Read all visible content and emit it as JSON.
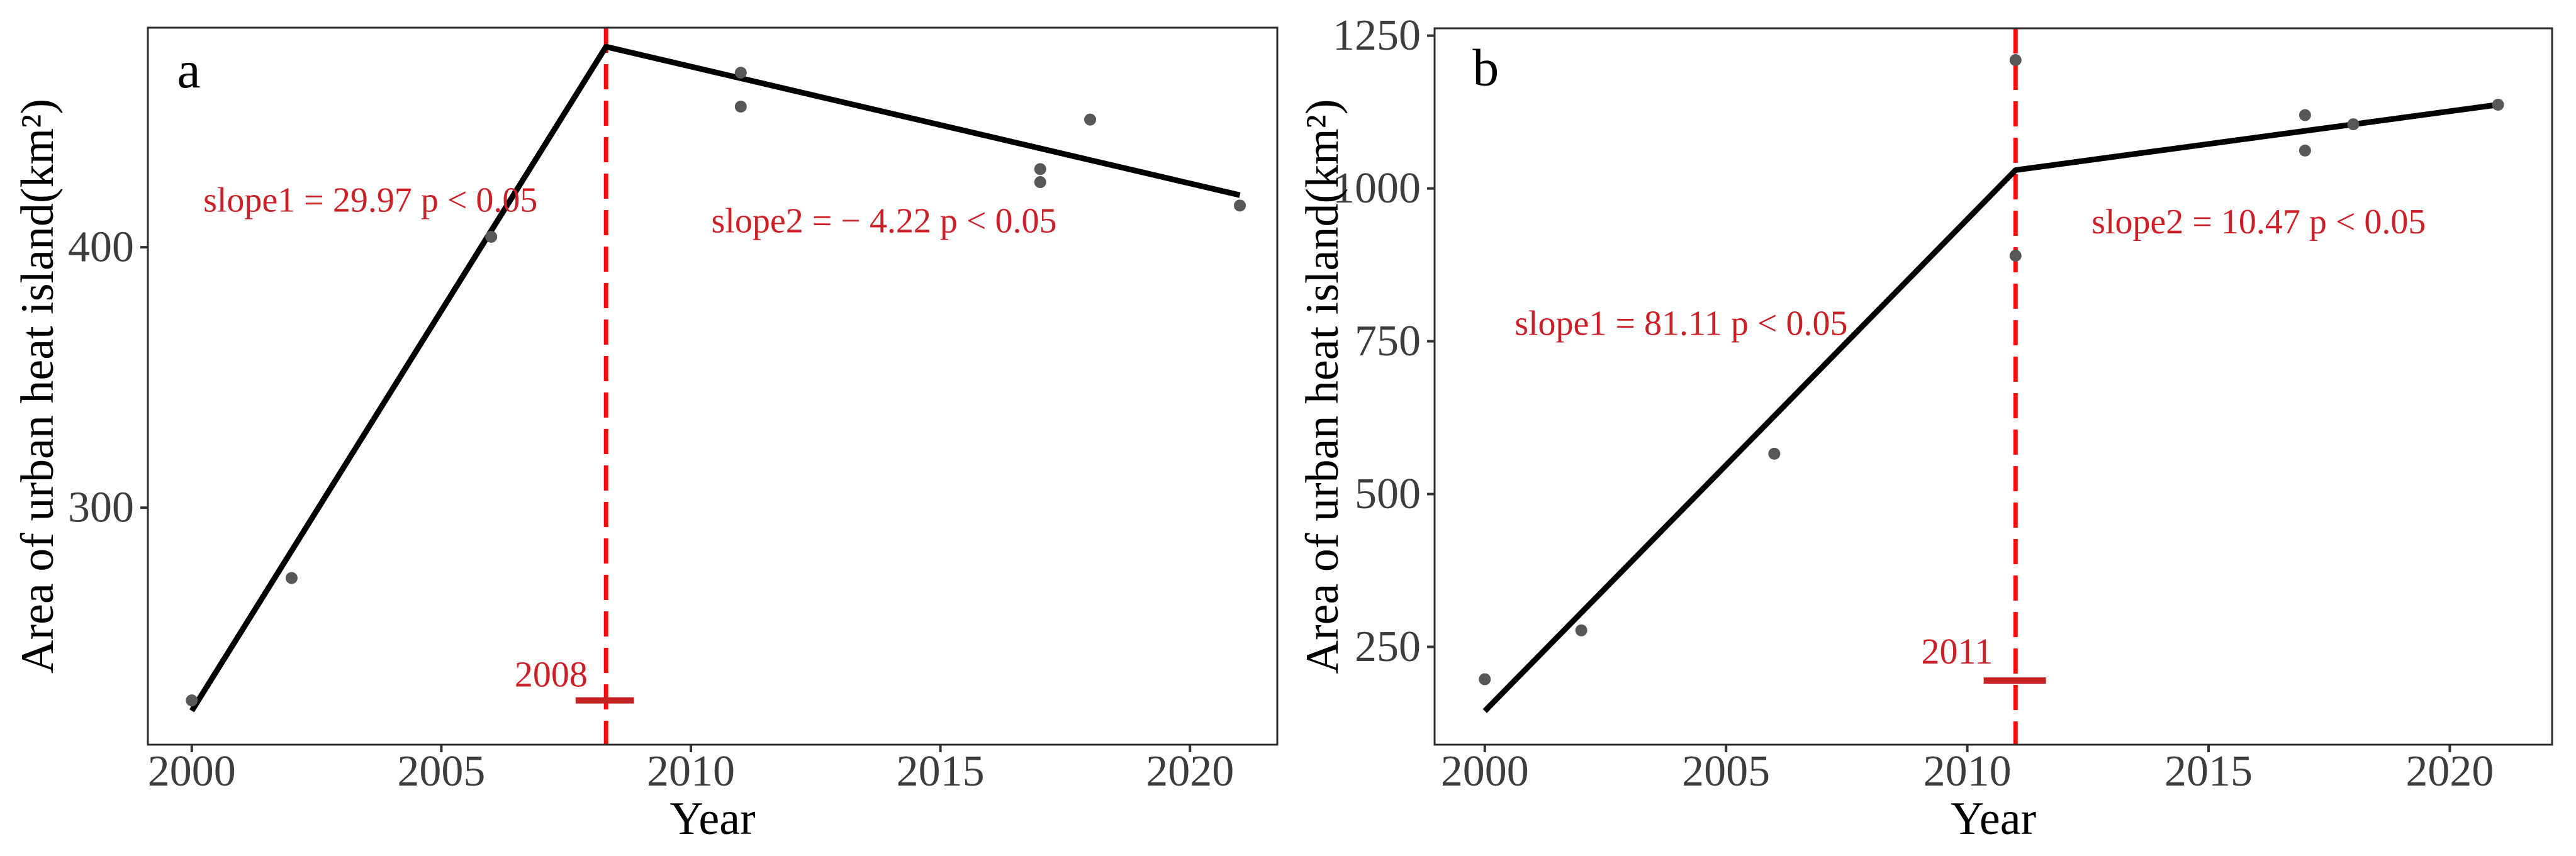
{
  "figure": {
    "description": "Two-panel segmented regression of urban heat island area versus year",
    "background": "#ffffff"
  },
  "styles": {
    "colors": {
      "trend_line": "#000000",
      "point": "#575757",
      "breakpoint_vline": "#fa0a0a",
      "annotation_red": "#cd2026",
      "ci_bar_red": "#c32222",
      "tick_label": "#3d3d3d",
      "axis_title": "#000000",
      "panel_border": "#2b2b2b",
      "tick_mark": "#333333"
    }
  },
  "chart_data": [
    {
      "id": "a",
      "type": "scatter",
      "panel_label": "a",
      "panel_label_pos": [
        1999.94,
        468
      ],
      "xlabel": "Year",
      "ylabel": "Area of urban heat island(km²)",
      "xlim": [
        1999.12,
        2021.75
      ],
      "ylim": [
        209,
        484.3
      ],
      "x_ticks": [
        2000,
        2005,
        2010,
        2015,
        2020
      ],
      "y_ticks": [
        300,
        400
      ],
      "grid": false,
      "legend": false,
      "points": [
        {
          "year": 2000,
          "value": 226
        },
        {
          "year": 2002,
          "value": 273
        },
        {
          "year": 2006,
          "value": 404
        },
        {
          "year": 2011,
          "value": 467
        },
        {
          "year": 2011,
          "value": 454
        },
        {
          "year": 2017,
          "value": 430
        },
        {
          "year": 2017,
          "value": 425
        },
        {
          "year": 2018,
          "value": 449
        },
        {
          "year": 2021,
          "value": 416
        }
      ],
      "trend_line": [
        [
          2000,
          222
        ],
        [
          2008.3,
          477
        ],
        [
          2021,
          420
        ]
      ],
      "breakpoint": {
        "year": 2008.3,
        "label": "2008",
        "label_pos": [
          2007.2,
          236
        ],
        "ci_bar": {
          "from_year": 2007.69,
          "to_year": 2008.86,
          "value": 226
        }
      },
      "annotations": [
        {
          "name": "slope1",
          "text": "slope1 = 29.97 p < 0.05",
          "pos": [
            2003.58,
            418
          ]
        },
        {
          "name": "slope2",
          "text": "slope2 = − 4.22 p < 0.05",
          "pos": [
            2013.87,
            410
          ]
        }
      ]
    },
    {
      "id": "b",
      "type": "scatter",
      "panel_label": "b",
      "panel_label_pos": [
        2000.02,
        1197
      ],
      "xlabel": "Year",
      "ylabel": "Area of urban heat island(km²)",
      "xlim": [
        1998.96,
        2022.12
      ],
      "ylim": [
        90,
        1262
      ],
      "x_ticks": [
        2000,
        2005,
        2010,
        2015,
        2020
      ],
      "y_ticks": [
        250,
        500,
        750,
        1000,
        1250
      ],
      "grid": false,
      "legend": false,
      "points": [
        {
          "year": 2000,
          "value": 197
        },
        {
          "year": 2002,
          "value": 277
        },
        {
          "year": 2006,
          "value": 566
        },
        {
          "year": 2011,
          "value": 1210
        },
        {
          "year": 2011,
          "value": 890
        },
        {
          "year": 2017,
          "value": 1120
        },
        {
          "year": 2017,
          "value": 1062
        },
        {
          "year": 2018,
          "value": 1105
        },
        {
          "year": 2021,
          "value": 1137
        }
      ],
      "trend_line": [
        [
          2000,
          145
        ],
        [
          2011,
          1030
        ],
        [
          2021,
          1137
        ]
      ],
      "breakpoint": {
        "year": 2011,
        "label": "2011",
        "label_pos": [
          2009.79,
          243
        ],
        "ci_bar": {
          "from_year": 2010.34,
          "to_year": 2011.63,
          "value": 195
        }
      },
      "annotations": [
        {
          "name": "slope1",
          "text": "slope1 = 81.11 p < 0.05",
          "pos": [
            2004.07,
            779
          ]
        },
        {
          "name": "slope2",
          "text": "slope2 = 10.47 p < 0.05",
          "pos": [
            2016.04,
            945
          ]
        }
      ]
    }
  ]
}
